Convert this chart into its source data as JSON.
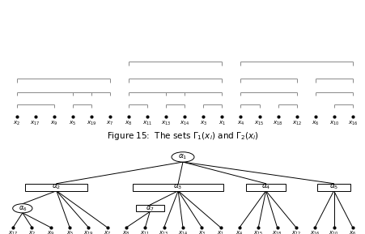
{
  "title": "Figure 15:  The sets $\\Gamma_1(x_i)$ and $\\Gamma_2(x_i)$",
  "fig_width": 4.52,
  "fig_height": 2.89,
  "dpi": 100,
  "top_labels": [
    "$x_2$",
    "$x_{17}$",
    "$x_9$",
    "$x_5$",
    "$x_{19}$",
    "$x_7$",
    "$x_8$",
    "$x_{11}$",
    "$x_{13}$",
    "$x_{14}$",
    "$x_3$",
    "$x_1$",
    "$x_4$",
    "$x_{15}$",
    "$x_{18}$",
    "$x_{12}$",
    "$x_6$",
    "$x_{10}$",
    "$x_{16}$"
  ],
  "tree_leaf_labels": [
    "$x_{17}$",
    "$x_2$",
    "$x_9$",
    "$x_5$",
    "$x_{19}$",
    "$x_7$",
    "$x_8$",
    "$x_{11}$",
    "$x_{13}$",
    "$x_{14}$",
    "$x_3$",
    "$x_1$",
    "$x_4$",
    "$x_{15}$",
    "$x_{18}$",
    "$x_{12}$",
    "$x_{16}$",
    "$x_{10}$",
    "$x_6$"
  ],
  "bracket_color": "#888888",
  "background": "#ffffff"
}
